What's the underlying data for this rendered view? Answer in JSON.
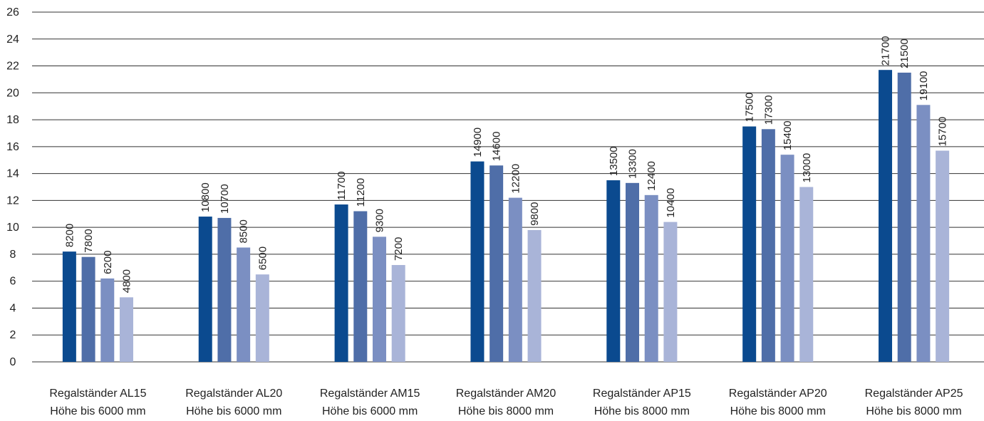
{
  "chart_data": {
    "type": "bar",
    "title": "",
    "xlabel": "",
    "ylabel": "",
    "ylim": [
      0,
      26
    ],
    "yticks": [
      0,
      2,
      4,
      6,
      8,
      10,
      12,
      14,
      16,
      18,
      20,
      22,
      24,
      26
    ],
    "grid": true,
    "legend": "none",
    "categories": [
      [
        "Regalständer AL15",
        "Höhe bis 6000 mm"
      ],
      [
        "Regalständer AL20",
        "Höhe bis 6000 mm"
      ],
      [
        "Regalständer AM15",
        "Höhe bis 6000 mm"
      ],
      [
        "Regalständer AM20",
        "Höhe bis 8000 mm"
      ],
      [
        "Regalständer AP15",
        "Höhe bis 8000 mm"
      ],
      [
        "Regalständer AP20",
        "Höhe bis 8000 mm"
      ],
      [
        "Regalständer AP25",
        "Höhe bis 8000 mm"
      ]
    ],
    "series": [
      {
        "color": "#0b4a8f",
        "values": [
          8200,
          10800,
          11700,
          14900,
          13500,
          17500,
          21700
        ]
      },
      {
        "color": "#4f6ea8",
        "values": [
          7800,
          10700,
          11200,
          14600,
          13300,
          17300,
          21500
        ]
      },
      {
        "color": "#7b8fc2",
        "values": [
          6200,
          8500,
          9300,
          12200,
          12400,
          15400,
          19100
        ]
      },
      {
        "color": "#a9b4d8",
        "values": [
          4800,
          6500,
          7200,
          9800,
          10400,
          13000,
          15700
        ]
      }
    ]
  }
}
